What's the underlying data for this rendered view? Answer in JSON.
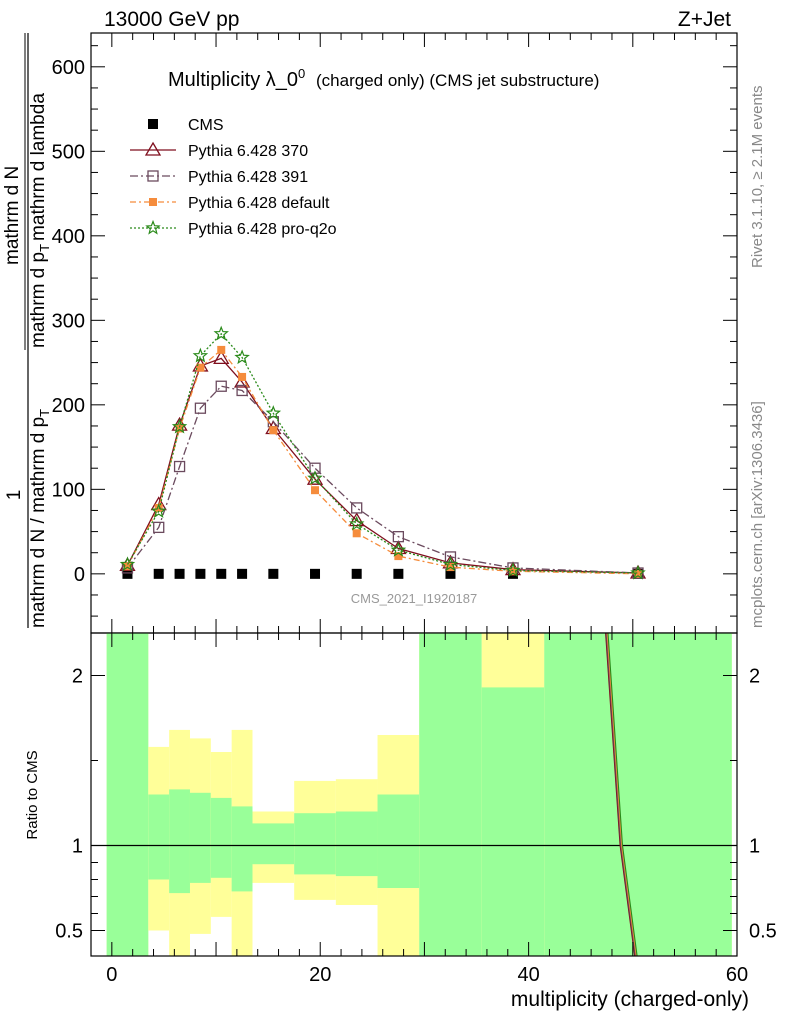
{
  "header": {
    "left": "13000 GeV pp",
    "right": "Z+Jet"
  },
  "side_labels": {
    "rivet": "Rivet 3.1.10, ≥ 2.1M events",
    "mcplots": "mcplots.cern.ch [arXiv:1306.3436]"
  },
  "chart_data": [
    {
      "type": "line",
      "title_main": "Multiplicity λ_0",
      "title_sup": "0",
      "title_suffix": "(charged only) (CMS jet substructure)",
      "analysis_tag": "CMS_2021_I1920187",
      "ylabel_parts": [
        "1",
        "mathrm d N / mathrm d p",
        "T",
        "mathrm d N",
        "mathrm d p",
        "T",
        "mathrm d lambda"
      ],
      "xlabel": "multiplicity (charged-only)",
      "xlim": [
        -2,
        60
      ],
      "ylim": [
        -70,
        640
      ],
      "yticks": [
        0,
        100,
        200,
        300,
        400,
        500,
        600
      ],
      "xticks": [
        0,
        20,
        40,
        60
      ],
      "colors": {
        "cms": "#000000",
        "p370": "#7f0f1e",
        "p391": "#6b4a5e",
        "pdefault": "#f58c3c",
        "pq2o": "#2a8a1a"
      },
      "series": [
        {
          "name": "CMS",
          "marker": "square",
          "x": [
            1.5,
            4.5,
            6.5,
            8.5,
            10.5,
            12.5,
            15.5,
            19.5,
            23.5,
            27.5,
            32.5,
            38.5,
            50.5
          ],
          "y": [
            0,
            0,
            0,
            0,
            0,
            0,
            0,
            0,
            0,
            0,
            0,
            0,
            0
          ]
        },
        {
          "name": "Pythia 6.428 370",
          "marker": "triangle",
          "x": [
            1.5,
            4.5,
            6.5,
            8.5,
            10.5,
            12.5,
            15.5,
            19.5,
            23.5,
            27.5,
            32.5,
            38.5,
            50.5
          ],
          "y": [
            10,
            82,
            176,
            246,
            255,
            227,
            172,
            112,
            63,
            30,
            13,
            5,
            1
          ]
        },
        {
          "name": "Pythia 6.428 391",
          "marker": "open-square",
          "x": [
            1.5,
            4.5,
            6.5,
            8.5,
            10.5,
            12.5,
            15.5,
            19.5,
            23.5,
            27.5,
            32.5,
            38.5,
            50.5
          ],
          "y": [
            7,
            55,
            127,
            196,
            222,
            217,
            180,
            125,
            78,
            44,
            20,
            7,
            1
          ]
        },
        {
          "name": "Pythia 6.428 default",
          "marker": "filled-square",
          "x": [
            1.5,
            4.5,
            6.5,
            8.5,
            10.5,
            12.5,
            15.5,
            19.5,
            23.5,
            27.5,
            32.5,
            38.5,
            50.5
          ],
          "y": [
            9,
            78,
            172,
            244,
            265,
            233,
            170,
            99,
            48,
            21,
            8,
            3,
            0
          ]
        },
        {
          "name": "Pythia 6.428 pro-q2o",
          "marker": "star",
          "x": [
            1.5,
            4.5,
            6.5,
            8.5,
            10.5,
            12.5,
            15.5,
            19.5,
            23.5,
            27.5,
            32.5,
            38.5,
            50.5
          ],
          "y": [
            11,
            74,
            174,
            258,
            284,
            256,
            190,
            113,
            59,
            28,
            11,
            4,
            1
          ]
        }
      ]
    },
    {
      "type": "area",
      "ylabel": "Ratio to CMS",
      "xlim": [
        -2,
        60
      ],
      "ylim": [
        0.35,
        2.25
      ],
      "yticks": [
        0.5,
        1,
        2
      ],
      "ytick_labels": [
        "0.5",
        "1",
        "2"
      ],
      "bands": {
        "bins": [
          {
            "x0": -0.5,
            "x1": 3.5,
            "green": [
              0.35,
              2.25
            ],
            "yellow": [
              0.35,
              2.25
            ]
          },
          {
            "x0": 3.5,
            "x1": 5.5,
            "green": [
              0.8,
              1.3
            ],
            "yellow": [
              0.5,
              1.58
            ]
          },
          {
            "x0": 5.5,
            "x1": 7.5,
            "green": [
              0.72,
              1.33
            ],
            "yellow": [
              0.35,
              1.68
            ]
          },
          {
            "x0": 7.5,
            "x1": 9.5,
            "green": [
              0.78,
              1.31
            ],
            "yellow": [
              0.48,
              1.63
            ]
          },
          {
            "x0": 9.5,
            "x1": 11.5,
            "green": [
              0.81,
              1.28
            ],
            "yellow": [
              0.58,
              1.55
            ]
          },
          {
            "x0": 11.5,
            "x1": 13.5,
            "green": [
              0.73,
              1.23
            ],
            "yellow": [
              0.35,
              1.68
            ]
          },
          {
            "x0": 13.5,
            "x1": 17.5,
            "green": [
              0.89,
              1.13
            ],
            "yellow": [
              0.78,
              1.2
            ]
          },
          {
            "x0": 17.5,
            "x1": 21.5,
            "green": [
              0.83,
              1.19
            ],
            "yellow": [
              0.68,
              1.38
            ]
          },
          {
            "x0": 21.5,
            "x1": 25.5,
            "green": [
              0.82,
              1.2
            ],
            "yellow": [
              0.65,
              1.39
            ]
          },
          {
            "x0": 25.5,
            "x1": 29.5,
            "green": [
              0.75,
              1.3
            ],
            "yellow": [
              0.35,
              1.65
            ]
          },
          {
            "x0": 29.5,
            "x1": 35.5,
            "green": [
              0.35,
              2.25
            ],
            "yellow": [
              0.35,
              2.25
            ]
          },
          {
            "x0": 35.5,
            "x1": 41.5,
            "green": [
              0.35,
              1.93
            ],
            "yellow": [
              0.35,
              2.25
            ]
          },
          {
            "x0": 41.5,
            "x1": 59.5,
            "green": [
              0.35,
              2.25
            ],
            "yellow": [
              0.35,
              2.25
            ]
          }
        ]
      },
      "ratio_line": {
        "x": [
          47.5,
          48.9,
          50.3
        ],
        "y": [
          2.25,
          1.0,
          0.35
        ]
      }
    }
  ]
}
